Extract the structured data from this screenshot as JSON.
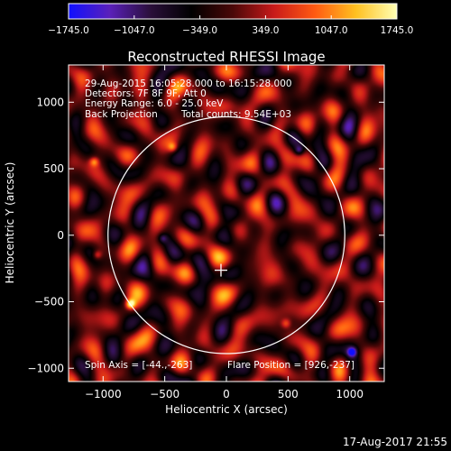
{
  "window": {
    "title": "Reconstructed RHESSI Image",
    "footer_stamp": "17-Aug-2017 21:55"
  },
  "overlay": {
    "time_range": "29-Aug-2015 16:05:28.000 to 16:15:28.000",
    "detectors": "Detectors: 7F 8F 9F, Att 0",
    "energy": "Energy Range: 6.0 - 25.0 keV",
    "method": "Back Projection",
    "counts": "Total counts: 9.54E+03",
    "spin_axis": "Spin Axis = [-44.,-263]",
    "flare_position": "Flare Position = [926,-237]"
  },
  "colors": {
    "background": "#000000",
    "solar_limb": "#ffffff",
    "text": "#ffffff",
    "colormap": [
      "#1010ff",
      "#5a20ba",
      "#2a0f3a",
      "#000000",
      "#4a0808",
      "#c81a1a",
      "#ff5a12",
      "#ffc020",
      "#ffffb4"
    ]
  },
  "chart_data": {
    "type": "heatmap",
    "title": "Reconstructed RHESSI Image",
    "xlabel": "Heliocentric X (arcsec)",
    "ylabel": "Heliocentric Y (arcsec)",
    "xlim": [
      -1280,
      1280
    ],
    "ylim": [
      -1100,
      1280
    ],
    "x_ticks": [
      {
        "value": -1000,
        "label": "−1000"
      },
      {
        "value": -500,
        "label": "−500"
      },
      {
        "value": 0,
        "label": "0"
      },
      {
        "value": 500,
        "label": "500"
      },
      {
        "value": 1000,
        "label": "1000"
      }
    ],
    "y_ticks": [
      {
        "value": -1000,
        "label": "−1000"
      },
      {
        "value": -500,
        "label": "−500"
      },
      {
        "value": 0,
        "label": "0"
      },
      {
        "value": 500,
        "label": "500"
      },
      {
        "value": 1000,
        "label": "1000"
      }
    ],
    "colorbar": {
      "range": [
        -1745.0,
        1745.0
      ],
      "ticks": [
        {
          "value": -1745.0,
          "label": "−1745.0"
        },
        {
          "value": -1047.0,
          "label": "−1047.0"
        },
        {
          "value": -349.0,
          "label": "−349.0"
        },
        {
          "value": 349.0,
          "label": "349.0"
        },
        {
          "value": 1047.0,
          "label": "1047.0"
        },
        {
          "value": 1745.0,
          "label": "1745.0"
        }
      ]
    },
    "solar_limb": {
      "center": [
        0,
        0
      ],
      "radius_arcsec": 960
    },
    "marker": {
      "symbol": "+",
      "x": -44,
      "y": -263
    },
    "hot_spots": [
      {
        "x": -780,
        "y": -515,
        "value": 1745
      },
      {
        "x": -1075,
        "y": 555,
        "value": 1150
      },
      {
        "x": -440,
        "y": 665,
        "value": 1050
      },
      {
        "x": -1050,
        "y": -145,
        "value": 1000
      },
      {
        "x": 480,
        "y": -660,
        "value": 950
      }
    ],
    "cold_spots": [
      {
        "x": 1015,
        "y": -875,
        "value": -1745
      },
      {
        "x": 585,
        "y": 640,
        "value": -1100
      },
      {
        "x": -520,
        "y": -20,
        "value": -900
      }
    ],
    "grid": false
  }
}
